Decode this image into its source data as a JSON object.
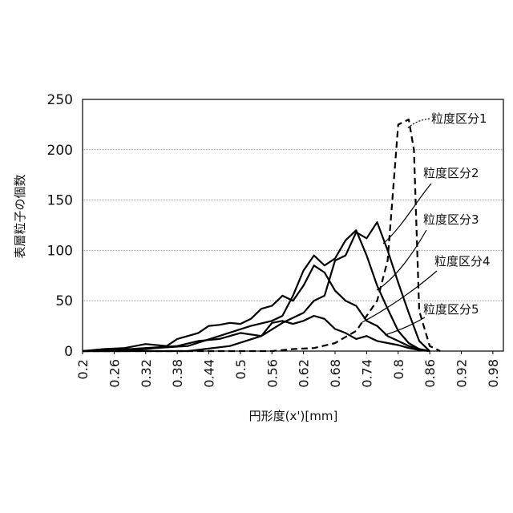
{
  "chart_data": {
    "type": "line",
    "title": "",
    "xlabel": "円形度(x')[mm]",
    "ylabel": "表層粒子の個数",
    "xlim": [
      0.2,
      1.0
    ],
    "ylim": [
      0,
      250
    ],
    "grid": true,
    "x_ticks": [
      "0.2",
      "0.26",
      "0.32",
      "0.38",
      "0.44",
      "0.5",
      "0.56",
      "0.62",
      "0.68",
      "0.74",
      "0.8",
      "0.86",
      "0.92",
      "0.98"
    ],
    "y_ticks": [
      "0",
      "50",
      "100",
      "150",
      "200",
      "250"
    ],
    "series": [
      {
        "name": "粒度区分1",
        "style": "dashed",
        "points": [
          [
            0.2,
            0
          ],
          [
            0.56,
            0
          ],
          [
            0.6,
            2
          ],
          [
            0.64,
            3
          ],
          [
            0.68,
            8
          ],
          [
            0.72,
            20
          ],
          [
            0.76,
            50
          ],
          [
            0.78,
            90
          ],
          [
            0.8,
            225
          ],
          [
            0.82,
            230
          ],
          [
            0.83,
            200
          ],
          [
            0.84,
            40
          ],
          [
            0.86,
            5
          ],
          [
            0.88,
            0
          ]
        ]
      },
      {
        "name": "粒度区分2",
        "style": "solid",
        "points": [
          [
            0.2,
            0
          ],
          [
            0.3,
            0
          ],
          [
            0.4,
            0
          ],
          [
            0.48,
            5
          ],
          [
            0.54,
            15
          ],
          [
            0.58,
            28
          ],
          [
            0.62,
            38
          ],
          [
            0.64,
            50
          ],
          [
            0.66,
            55
          ],
          [
            0.68,
            90
          ],
          [
            0.7,
            95
          ],
          [
            0.72,
            118
          ],
          [
            0.74,
            112
          ],
          [
            0.76,
            128
          ],
          [
            0.78,
            100
          ],
          [
            0.8,
            68
          ],
          [
            0.82,
            38
          ],
          [
            0.84,
            10
          ],
          [
            0.86,
            0
          ]
        ]
      },
      {
        "name": "粒度区分3",
        "style": "solid",
        "points": [
          [
            0.2,
            0
          ],
          [
            0.28,
            0
          ],
          [
            0.34,
            3
          ],
          [
            0.4,
            5
          ],
          [
            0.46,
            15
          ],
          [
            0.52,
            25
          ],
          [
            0.56,
            30
          ],
          [
            0.58,
            35
          ],
          [
            0.6,
            55
          ],
          [
            0.62,
            80
          ],
          [
            0.64,
            95
          ],
          [
            0.66,
            85
          ],
          [
            0.68,
            92
          ],
          [
            0.7,
            110
          ],
          [
            0.72,
            120
          ],
          [
            0.74,
            95
          ],
          [
            0.76,
            65
          ],
          [
            0.78,
            42
          ],
          [
            0.8,
            20
          ],
          [
            0.82,
            8
          ],
          [
            0.84,
            2
          ],
          [
            0.86,
            0
          ]
        ]
      },
      {
        "name": "粒度区分4",
        "style": "solid",
        "points": [
          [
            0.2,
            0
          ],
          [
            0.24,
            2
          ],
          [
            0.28,
            3
          ],
          [
            0.32,
            7
          ],
          [
            0.36,
            5
          ],
          [
            0.38,
            12
          ],
          [
            0.4,
            15
          ],
          [
            0.42,
            18
          ],
          [
            0.44,
            25
          ],
          [
            0.46,
            26
          ],
          [
            0.48,
            28
          ],
          [
            0.5,
            27
          ],
          [
            0.52,
            32
          ],
          [
            0.54,
            42
          ],
          [
            0.56,
            45
          ],
          [
            0.58,
            55
          ],
          [
            0.6,
            50
          ],
          [
            0.62,
            65
          ],
          [
            0.64,
            85
          ],
          [
            0.66,
            78
          ],
          [
            0.68,
            60
          ],
          [
            0.7,
            50
          ],
          [
            0.72,
            45
          ],
          [
            0.74,
            30
          ],
          [
            0.76,
            25
          ],
          [
            0.78,
            15
          ],
          [
            0.8,
            10
          ],
          [
            0.82,
            5
          ],
          [
            0.84,
            2
          ],
          [
            0.86,
            0
          ]
        ]
      },
      {
        "name": "粒度区分5",
        "style": "solid",
        "points": [
          [
            0.2,
            0
          ],
          [
            0.26,
            1
          ],
          [
            0.32,
            3
          ],
          [
            0.38,
            5
          ],
          [
            0.42,
            10
          ],
          [
            0.46,
            12
          ],
          [
            0.5,
            18
          ],
          [
            0.54,
            15
          ],
          [
            0.56,
            28
          ],
          [
            0.58,
            30
          ],
          [
            0.6,
            27
          ],
          [
            0.62,
            30
          ],
          [
            0.64,
            35
          ],
          [
            0.66,
            32
          ],
          [
            0.68,
            22
          ],
          [
            0.7,
            18
          ],
          [
            0.72,
            12
          ],
          [
            0.74,
            15
          ],
          [
            0.76,
            10
          ],
          [
            0.78,
            8
          ],
          [
            0.8,
            6
          ],
          [
            0.82,
            3
          ],
          [
            0.84,
            1
          ],
          [
            0.86,
            0
          ]
        ]
      }
    ]
  }
}
